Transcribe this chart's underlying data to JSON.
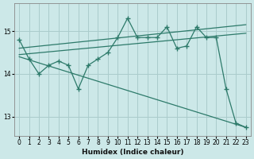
{
  "xlabel": "Humidex (Indice chaleur)",
  "background_color": "#cce8e8",
  "grid_color": "#aacccc",
  "line_color": "#2d7a6a",
  "x_data": [
    0,
    1,
    2,
    3,
    4,
    5,
    6,
    7,
    8,
    9,
    10,
    11,
    12,
    13,
    14,
    15,
    16,
    17,
    18,
    19,
    20,
    21,
    22,
    23
  ],
  "y_main": [
    14.8,
    14.35,
    14.0,
    14.2,
    14.3,
    14.2,
    13.65,
    14.2,
    14.35,
    14.5,
    14.85,
    15.3,
    14.85,
    14.85,
    14.85,
    15.1,
    14.6,
    14.65,
    15.1,
    14.85,
    14.85,
    13.65,
    12.85,
    12.75
  ],
  "trend1_x": [
    0,
    23
  ],
  "trend1_y": [
    14.45,
    14.95
  ],
  "trend2_x": [
    0,
    23
  ],
  "trend2_y": [
    14.6,
    15.15
  ],
  "trend3_x": [
    0,
    23
  ],
  "trend3_y": [
    14.4,
    12.75
  ],
  "ylim": [
    12.55,
    15.65
  ],
  "xlim": [
    -0.5,
    23.5
  ],
  "yticks": [
    13,
    14,
    15
  ],
  "xticks": [
    0,
    1,
    2,
    3,
    4,
    5,
    6,
    7,
    8,
    9,
    10,
    11,
    12,
    13,
    14,
    15,
    16,
    17,
    18,
    19,
    20,
    21,
    22,
    23
  ]
}
